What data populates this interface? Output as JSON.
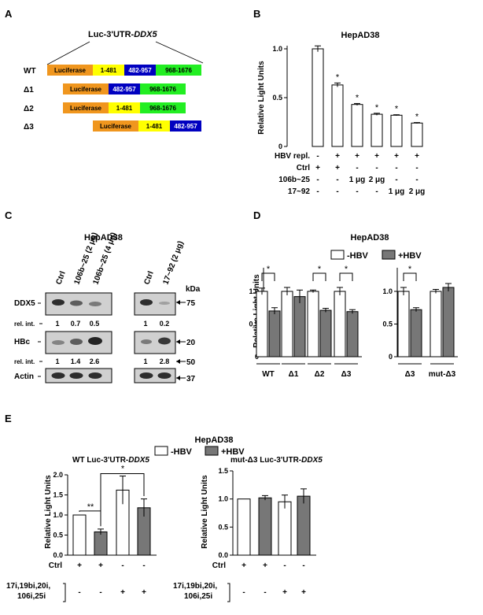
{
  "panel_letters": [
    "A",
    "B",
    "C",
    "D",
    "E"
  ],
  "panelA": {
    "title_prefix": "Luc-3'UTR-",
    "title_gene": "DDX5",
    "constructs": [
      {
        "label": "WT",
        "segments": [
          {
            "text": "Luciferase",
            "color": "#f0961e"
          },
          {
            "text": "1-481",
            "color": "#ffff00"
          },
          {
            "text": "482-957",
            "color": "#0000c0"
          },
          {
            "text": "968-1676",
            "color": "#22ee22"
          }
        ]
      },
      {
        "label": "Δ1",
        "segments": [
          {
            "text": "Luciferase",
            "color": "#f0961e"
          },
          {
            "text": "482-957",
            "color": "#0000c0"
          },
          {
            "text": "968-1676",
            "color": "#22ee22"
          }
        ]
      },
      {
        "label": "Δ2",
        "segments": [
          {
            "text": "Luciferase",
            "color": "#f0961e"
          },
          {
            "text": "1-481",
            "color": "#ffff00"
          },
          {
            "text": "968-1676",
            "color": "#22ee22"
          }
        ]
      },
      {
        "label": "Δ3",
        "segments": [
          {
            "text": "Luciferase",
            "color": "#f0961e"
          },
          {
            "text": "1-481",
            "color": "#ffff00"
          },
          {
            "text": "482-957",
            "color": "#0000c0"
          }
        ]
      }
    ]
  },
  "panelC": {
    "title": "HepAD38",
    "lane_labels_left": [
      "Ctrl",
      "106b~25 (2 μg)",
      "106b~25 (4 μg)"
    ],
    "lane_labels_right": [
      "Ctrl",
      "17~92 (2 μg)"
    ],
    "kda_label": "kDa",
    "markers": [
      "75",
      "20",
      "50",
      "37"
    ],
    "rows": [
      "DDX5",
      "rel. int.",
      "HBc",
      "rel. int.",
      "Actin"
    ],
    "ddx5_rel_left": [
      "1",
      "0.7",
      "0.5"
    ],
    "ddx5_rel_right": [
      "1",
      "0.2"
    ],
    "hbc_rel_left": [
      "1",
      "1.4",
      "2.6"
    ],
    "hbc_rel_right": [
      "1",
      "2.8"
    ]
  },
  "chart_data": [
    {
      "panel": "B",
      "type": "bar",
      "title": "HepAD38",
      "ylabel": "Relative Light Units",
      "ylim": [
        0,
        1.0
      ],
      "yticks": [
        "0",
        "0.5",
        "1.0"
      ],
      "values": [
        1.0,
        0.63,
        0.43,
        0.33,
        0.32,
        0.24
      ],
      "errors": [
        0.03,
        0.02,
        0.01,
        0.01,
        0.005,
        0.005
      ],
      "stars": [
        "",
        "*",
        "*",
        "*",
        "*",
        "*"
      ],
      "conditions": [
        {
          "label": "HBV repl.",
          "values": [
            "-",
            "+",
            "+",
            "+",
            "+",
            "+"
          ]
        },
        {
          "label": "Ctrl",
          "values": [
            "+",
            "+",
            "-",
            "-",
            "-",
            "-"
          ]
        },
        {
          "label": "106b~25",
          "values": [
            "-",
            "-",
            "1 μg",
            "2 μg",
            "-",
            "-"
          ]
        },
        {
          "label": "17~92",
          "values": [
            "-",
            "-",
            "-",
            "-",
            "1 μg",
            "2 μg"
          ]
        }
      ]
    },
    {
      "panel": "D",
      "type": "bar",
      "title": "HepAD38",
      "ylabel": "Relative Light Units",
      "ylim": [
        0,
        1.0
      ],
      "yticks": [
        "0",
        "0.5",
        "1.0"
      ],
      "legend": [
        {
          "name": "-HBV",
          "color": "#ffffff"
        },
        {
          "name": "+HBV",
          "color": "#777777"
        }
      ],
      "left": {
        "categories": [
          "WT",
          "Δ1",
          "Δ2",
          "Δ3"
        ],
        "series": [
          {
            "name": "-HBV",
            "values": [
              1.0,
              1.0,
              1.0,
              1.0
            ],
            "errors": [
              0.05,
              0.06,
              0.02,
              0.06
            ]
          },
          {
            "name": "+HBV",
            "values": [
              0.7,
              0.92,
              0.71,
              0.69
            ],
            "errors": [
              0.05,
              0.1,
              0.03,
              0.03
            ]
          }
        ],
        "significance": [
          "*",
          "",
          "*",
          "*"
        ]
      },
      "right": {
        "categories": [
          "Δ3",
          "mut-Δ3"
        ],
        "series": [
          {
            "name": "-HBV",
            "values": [
              1.0,
              1.0
            ],
            "errors": [
              0.06,
              0.03
            ]
          },
          {
            "name": "+HBV",
            "values": [
              0.72,
              1.06
            ],
            "errors": [
              0.03,
              0.06
            ]
          }
        ],
        "significance": [
          "*",
          ""
        ]
      }
    },
    {
      "panel": "E",
      "type": "bar",
      "title": "HepAD38",
      "legend": [
        {
          "name": "-HBV",
          "color": "#ffffff"
        },
        {
          "name": "+HBV",
          "color": "#777777"
        }
      ],
      "ylabel": "Relative Light Units",
      "left": {
        "title_prefix": "WT Luc-3'UTR-",
        "title_gene": "DDX5",
        "ylim": [
          0,
          2.0
        ],
        "yticks": [
          "0.0",
          "0.5",
          "1.0",
          "1.5",
          "2.0"
        ],
        "values": [
          1.0,
          0.58,
          1.62,
          1.18
        ],
        "errors": [
          0.0,
          0.07,
          0.35,
          0.22
        ],
        "fills": [
          "white",
          "gray",
          "white",
          "gray"
        ],
        "brackets": [
          {
            "from": 0,
            "to": 1,
            "label": "**"
          },
          {
            "from": 1,
            "to": 3,
            "label": "*"
          }
        ]
      },
      "right": {
        "title_prefix": "mut-Δ3 Luc-3'UTR-",
        "title_gene": "DDX5",
        "ylim": [
          0,
          1.5
        ],
        "yticks": [
          "0.0",
          "0.5",
          "1.0",
          "1.5"
        ],
        "values": [
          1.0,
          1.02,
          0.95,
          1.05
        ],
        "errors": [
          0.0,
          0.04,
          0.12,
          0.13
        ],
        "fills": [
          "white",
          "gray",
          "white",
          "gray"
        ]
      },
      "conditions": [
        {
          "label": "Ctrl",
          "values": [
            "+",
            "+",
            "-",
            "-"
          ]
        },
        {
          "label_lines": [
            "17i,19bi,20i,",
            "106i,25i"
          ],
          "values": [
            "-",
            "-",
            "+",
            "+"
          ]
        }
      ]
    }
  ]
}
